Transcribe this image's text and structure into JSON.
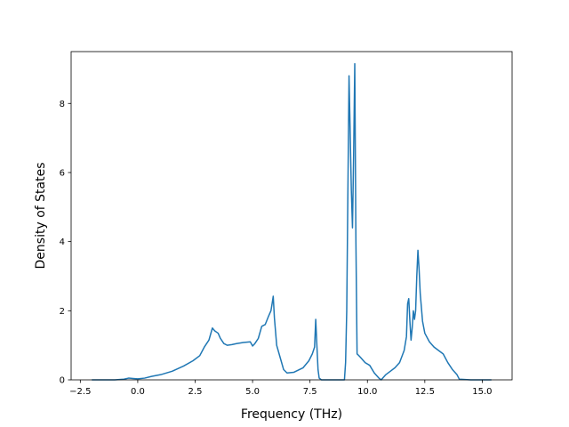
{
  "chart_data": {
    "type": "line",
    "title": "",
    "xlabel": "Frequency (THz)",
    "ylabel": "Density of States",
    "xlim": [
      -2.9,
      16.3
    ],
    "ylim": [
      0,
      9.5
    ],
    "grid": false,
    "legend": "none",
    "x_ticks": [
      -2.5,
      0.0,
      2.5,
      5.0,
      7.5,
      10.0,
      12.5,
      15.0
    ],
    "x_tick_labels": [
      "−2.5",
      "0.0",
      "2.5",
      "5.0",
      "7.5",
      "10.0",
      "12.5",
      "15.0"
    ],
    "y_ticks": [
      0,
      2,
      4,
      6,
      8
    ],
    "y_tick_labels": [
      "0",
      "2",
      "4",
      "6",
      "8"
    ],
    "series": [
      {
        "color": "#1f77b4",
        "x": [
          -2.0,
          -1.0,
          -0.6,
          -0.4,
          -0.2,
          0.0,
          0.3,
          0.6,
          1.0,
          1.5,
          2.0,
          2.4,
          2.7,
          2.9,
          3.1,
          3.25,
          3.35,
          3.5,
          3.6,
          3.75,
          3.9,
          4.1,
          4.3,
          4.6,
          4.9,
          5.0,
          5.1,
          5.25,
          5.4,
          5.55,
          5.7,
          5.8,
          5.85,
          5.9,
          5.95,
          6.05,
          6.2,
          6.35,
          6.5,
          6.8,
          7.2,
          7.45,
          7.6,
          7.7,
          7.75,
          7.8,
          7.85,
          7.9,
          8.0,
          8.2,
          8.6,
          9.0,
          9.05,
          9.1,
          9.2,
          9.3,
          9.35,
          9.4,
          9.45,
          9.5,
          9.55,
          9.6,
          9.7,
          9.9,
          10.1,
          10.3,
          10.5,
          10.6,
          10.8,
          11.0,
          11.2,
          11.4,
          11.6,
          11.7,
          11.75,
          11.8,
          11.85,
          11.9,
          11.95,
          12.0,
          12.05,
          12.1,
          12.15,
          12.2,
          12.25,
          12.3,
          12.4,
          12.5,
          12.7,
          12.9,
          13.1,
          13.3,
          13.5,
          13.7,
          13.9,
          14.0,
          14.5,
          15.0,
          15.4
        ],
        "y": [
          0.0,
          0.0,
          0.02,
          0.05,
          0.04,
          0.03,
          0.05,
          0.1,
          0.15,
          0.25,
          0.4,
          0.55,
          0.7,
          0.95,
          1.15,
          1.5,
          1.42,
          1.35,
          1.2,
          1.05,
          1.0,
          1.02,
          1.05,
          1.08,
          1.1,
          0.98,
          1.05,
          1.2,
          1.55,
          1.6,
          1.85,
          2.0,
          2.2,
          2.42,
          1.8,
          1.0,
          0.65,
          0.3,
          0.2,
          0.22,
          0.35,
          0.55,
          0.75,
          0.95,
          1.75,
          1.0,
          0.3,
          0.05,
          0.0,
          0.0,
          0.0,
          0.0,
          0.5,
          2.0,
          8.8,
          5.5,
          4.4,
          6.5,
          9.15,
          4.0,
          0.75,
          0.72,
          0.65,
          0.5,
          0.42,
          0.2,
          0.05,
          0.0,
          0.15,
          0.25,
          0.35,
          0.5,
          0.85,
          1.25,
          2.2,
          2.35,
          1.7,
          1.15,
          1.5,
          2.0,
          1.75,
          2.0,
          3.0,
          3.75,
          3.2,
          2.5,
          1.7,
          1.35,
          1.1,
          0.95,
          0.85,
          0.75,
          0.5,
          0.3,
          0.15,
          0.02,
          0.0,
          0.0,
          0.0
        ]
      }
    ]
  }
}
